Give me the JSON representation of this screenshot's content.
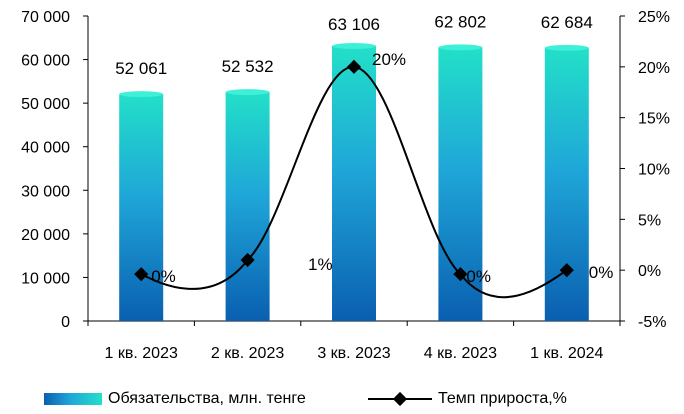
{
  "chart_data": {
    "type": "bar",
    "categories": [
      "1 кв. 2023",
      "2 кв. 2023",
      "3 кв. 2023",
      "4 кв. 2023",
      "1 кв. 2024"
    ],
    "series": [
      {
        "name": "Обязательства, млн. тенге",
        "type": "bar",
        "axis": "left",
        "values": [
          52061,
          52532,
          63106,
          62802,
          62684
        ],
        "labels": [
          "52 061",
          "52 532",
          "63 106",
          "62 802",
          "62 684"
        ]
      },
      {
        "name": "Темп прироста,%",
        "type": "line",
        "axis": "right",
        "values": [
          0,
          1,
          20,
          0,
          0
        ],
        "labels": [
          "0%",
          "1%",
          "20%",
          "0%",
          "0%"
        ]
      }
    ],
    "y_left": {
      "lim": [
        0,
        70000
      ],
      "ticks": [
        0,
        10000,
        20000,
        30000,
        40000,
        50000,
        60000,
        70000
      ],
      "tick_labels": [
        "0",
        "10 000",
        "20 000",
        "30 000",
        "40 000",
        "50 000",
        "60 000",
        "70 000"
      ]
    },
    "y_right": {
      "lim": [
        -5,
        25
      ],
      "ticks": [
        -5,
        0,
        5,
        10,
        15,
        20,
        25
      ],
      "tick_labels": [
        "-5%",
        "0%",
        "5%",
        "10%",
        "15%",
        "20%",
        "25%"
      ]
    },
    "grid": false,
    "legend": "bottom",
    "colors": {
      "bar_bottom": "#0a5fb0",
      "bar_mid": "#1fa6d8",
      "bar_top": "#22e0c8",
      "line": "#000000"
    }
  },
  "legend": {
    "bar_label": "Обязательства, млн. тенге",
    "line_label": "Темп прироста,%"
  }
}
